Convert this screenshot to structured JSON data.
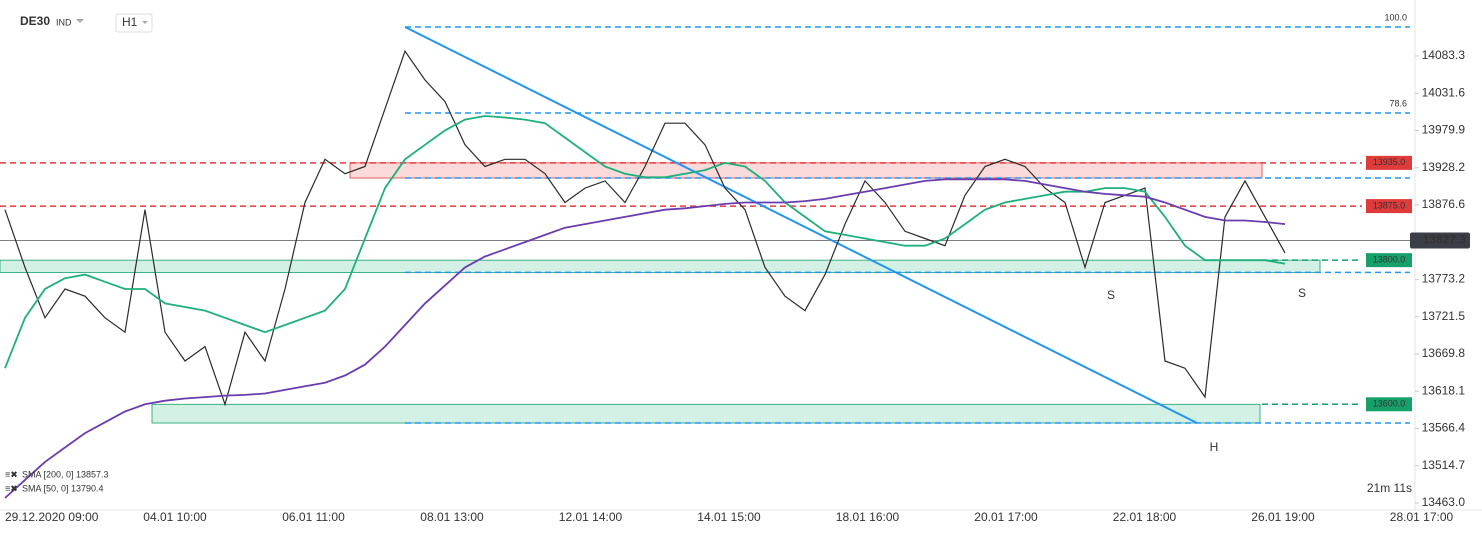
{
  "header": {
    "symbol": "DE30",
    "market": "IND",
    "interval": "H1"
  },
  "chart_data": {
    "type": "line",
    "xticks": [
      "29.12.2020 09:00",
      "04.01 10:00",
      "06.01 11:00",
      "08.01 13:00",
      "12.01 14:00",
      "14.01 15:00",
      "18.01 16:00",
      "20.01 17:00",
      "22.01 18:00",
      "26.01 19:00",
      "28.01 17:00"
    ],
    "ylim": [
      13453.3,
      14161.0
    ],
    "yticks": [
      14083.3,
      14031.6,
      13979.9,
      13928.2,
      13876.6,
      13773.2,
      13721.5,
      13669.8,
      13618.1,
      13566.4,
      13514.7,
      {
        "value": 13463,
        "label": "13463.0"
      }
    ],
    "series": [
      {
        "name": "DE30",
        "color": "#2b2b2b",
        "values": [
          13870,
          13790,
          13720,
          13760,
          13750,
          13720,
          13700,
          13870,
          13700,
          13660,
          13680,
          13600,
          13700,
          13660,
          13760,
          13880,
          13940,
          13920,
          13930,
          14010,
          14090,
          14050,
          14020,
          13960,
          13930,
          13940,
          13940,
          13920,
          13880,
          13900,
          13910,
          13880,
          13930,
          13990,
          13990,
          13960,
          13900,
          13870,
          13790,
          13750,
          13730,
          13780,
          13850,
          13910,
          13880,
          13840,
          13830,
          13820,
          13890,
          13930,
          13940,
          13930,
          13900,
          13880,
          13790,
          13880,
          13890,
          13900,
          13660,
          13650,
          13610,
          13860,
          13910,
          13860,
          13810
        ]
      },
      {
        "name": "SMA [50, 0] 13790.4",
        "color": "#1db07a",
        "values": [
          13650,
          13720,
          13760,
          13775,
          13780,
          13770,
          13760,
          13760,
          13740,
          13735,
          13730,
          13720,
          13710,
          13700,
          13710,
          13720,
          13730,
          13760,
          13830,
          13900,
          13940,
          13960,
          13980,
          13995,
          14000,
          13998,
          13995,
          13990,
          13970,
          13950,
          13930,
          13920,
          13915,
          13915,
          13920,
          13925,
          13935,
          13930,
          13910,
          13880,
          13860,
          13840,
          13835,
          13830,
          13825,
          13820,
          13820,
          13830,
          13850,
          13870,
          13880,
          13885,
          13890,
          13895,
          13895,
          13900,
          13900,
          13895,
          13860,
          13820,
          13800,
          13800,
          13800,
          13800,
          13795
        ]
      },
      {
        "name": "SMA [200, 0] 13857.3",
        "color": "#6a3cb0",
        "values": [
          13470,
          13495,
          13520,
          13540,
          13560,
          13575,
          13590,
          13600,
          13605,
          13608,
          13610,
          13612,
          13613,
          13615,
          13620,
          13625,
          13630,
          13640,
          13655,
          13680,
          13710,
          13740,
          13765,
          13790,
          13805,
          13815,
          13825,
          13835,
          13845,
          13850,
          13855,
          13860,
          13865,
          13870,
          13872,
          13875,
          13878,
          13880,
          13880,
          13880,
          13882,
          13885,
          13890,
          13895,
          13900,
          13905,
          13910,
          13912,
          13912,
          13912,
          13912,
          13910,
          13905,
          13900,
          13895,
          13892,
          13890,
          13888,
          13880,
          13870,
          13860,
          13855,
          13855,
          13853,
          13850
        ]
      }
    ],
    "levels": [
      {
        "value": 13935,
        "label": "13935.0",
        "color": "#e03b3b"
      },
      {
        "value": 13875,
        "label": "13875.0",
        "color": "#e03b3b"
      },
      {
        "value": 13800,
        "label": "13800.0",
        "color": "#16a06a"
      },
      {
        "value": 13600,
        "label": "13600.0",
        "color": "#16a06a"
      }
    ],
    "fib_levels": [
      {
        "value": 14123.5,
        "label": "100.0"
      },
      {
        "value": 14004.2,
        "label": "78.6"
      }
    ],
    "blue_levels": [
      13914,
      13783,
      13574
    ],
    "trendline": [
      14123.5,
      13574
    ],
    "current_price": {
      "value": 13827.3,
      "label": "13827.3"
    },
    "annotations": [
      "S",
      "S",
      "H"
    ],
    "timer": "21m 11s"
  }
}
